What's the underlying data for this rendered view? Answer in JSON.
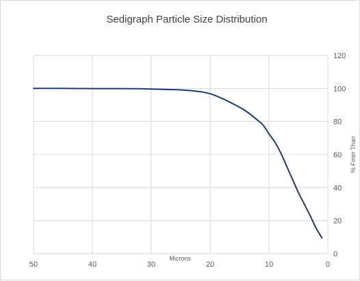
{
  "chart_data": {
    "type": "line",
    "title": "Sedigraph Particle Size Distribution",
    "xlabel": "Microns",
    "ylabel": "% Finer Than",
    "x_reversed": true,
    "xlim": [
      0,
      50
    ],
    "ylim": [
      0,
      120
    ],
    "x_ticks": [
      50,
      40,
      30,
      20,
      10,
      0
    ],
    "y_ticks": [
      0,
      20,
      40,
      60,
      80,
      100,
      120
    ],
    "y_axis_side": "right",
    "grid": true,
    "series": [
      {
        "color": "#1f3a6e",
        "x": [
          50,
          45,
          40,
          35,
          32,
          28,
          25,
          22,
          20,
          18,
          16,
          14,
          12,
          11,
          10,
          9,
          8,
          7,
          6,
          5,
          4,
          3,
          2,
          1
        ],
        "y": [
          100,
          100,
          99.9,
          99.9,
          99.8,
          99.4,
          99.1,
          98.2,
          96.8,
          94,
          90.5,
          86.5,
          81,
          77.8,
          72.5,
          67.5,
          61,
          53,
          45,
          37,
          30,
          23,
          15.5,
          9.5
        ]
      }
    ]
  }
}
